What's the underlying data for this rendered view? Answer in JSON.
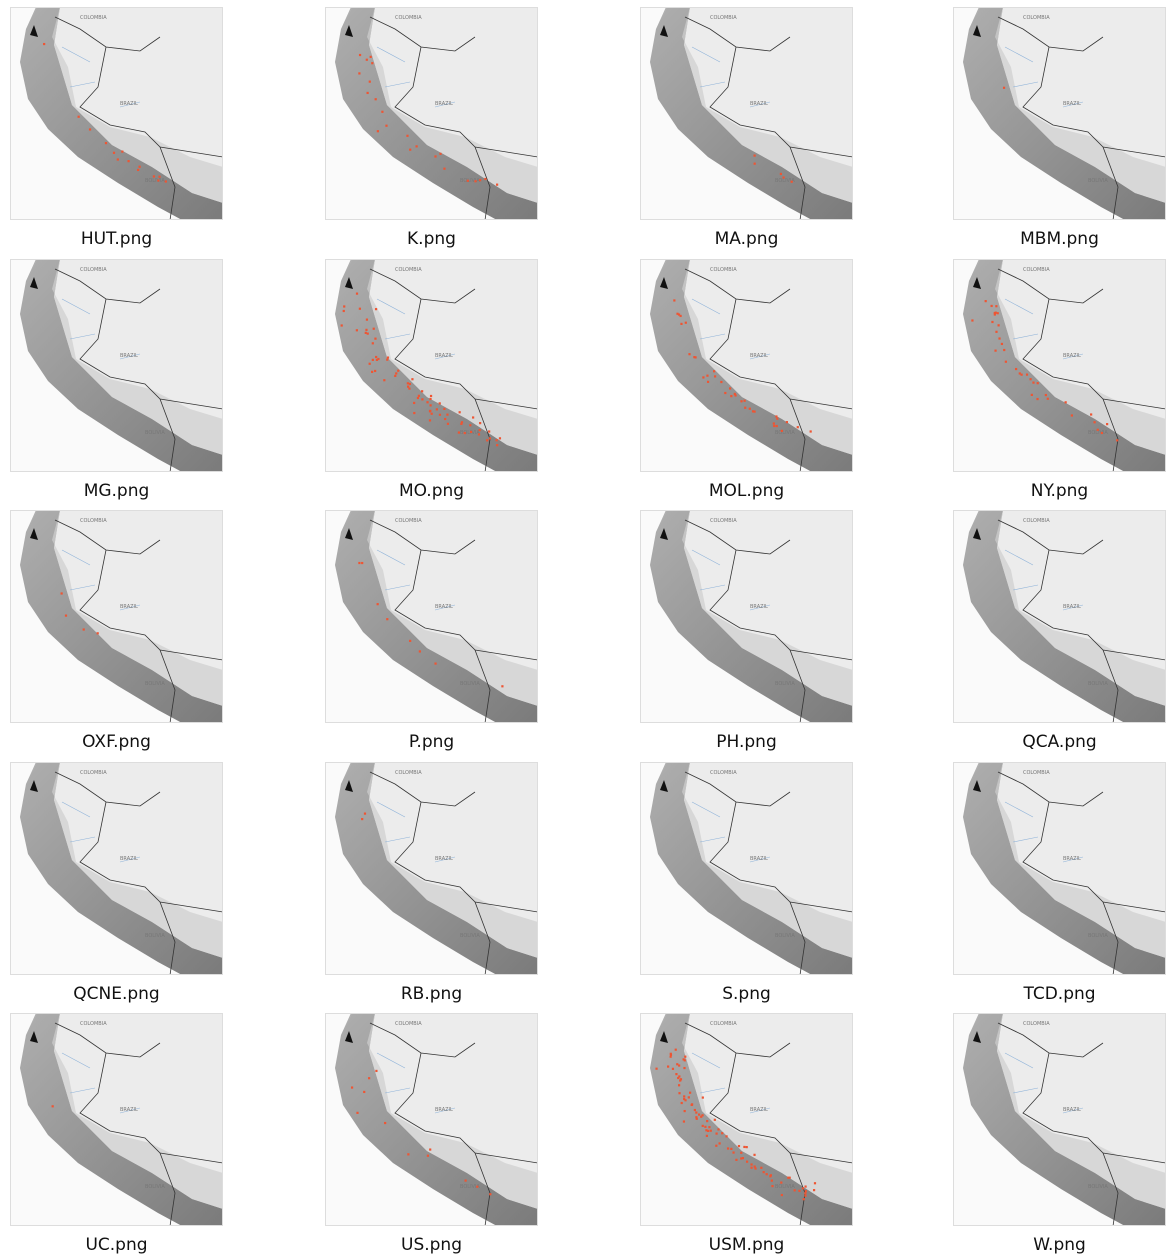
{
  "files": [
    "HUT.png",
    "K.png",
    "MA.png",
    "MBM.png",
    "MG.png",
    "MO.png",
    "MOL.png",
    "NY.png",
    "OXF.png",
    "P.png",
    "PH.png",
    "QCA.png",
    "QCNE.png",
    "RB.png",
    "S.png",
    "TCD.png",
    "UC.png",
    "US.png",
    "USM.png",
    "W.png"
  ],
  "map_labels": [
    "COLOMBIA",
    "BRAZIL",
    "BOLIVIA"
  ]
}
